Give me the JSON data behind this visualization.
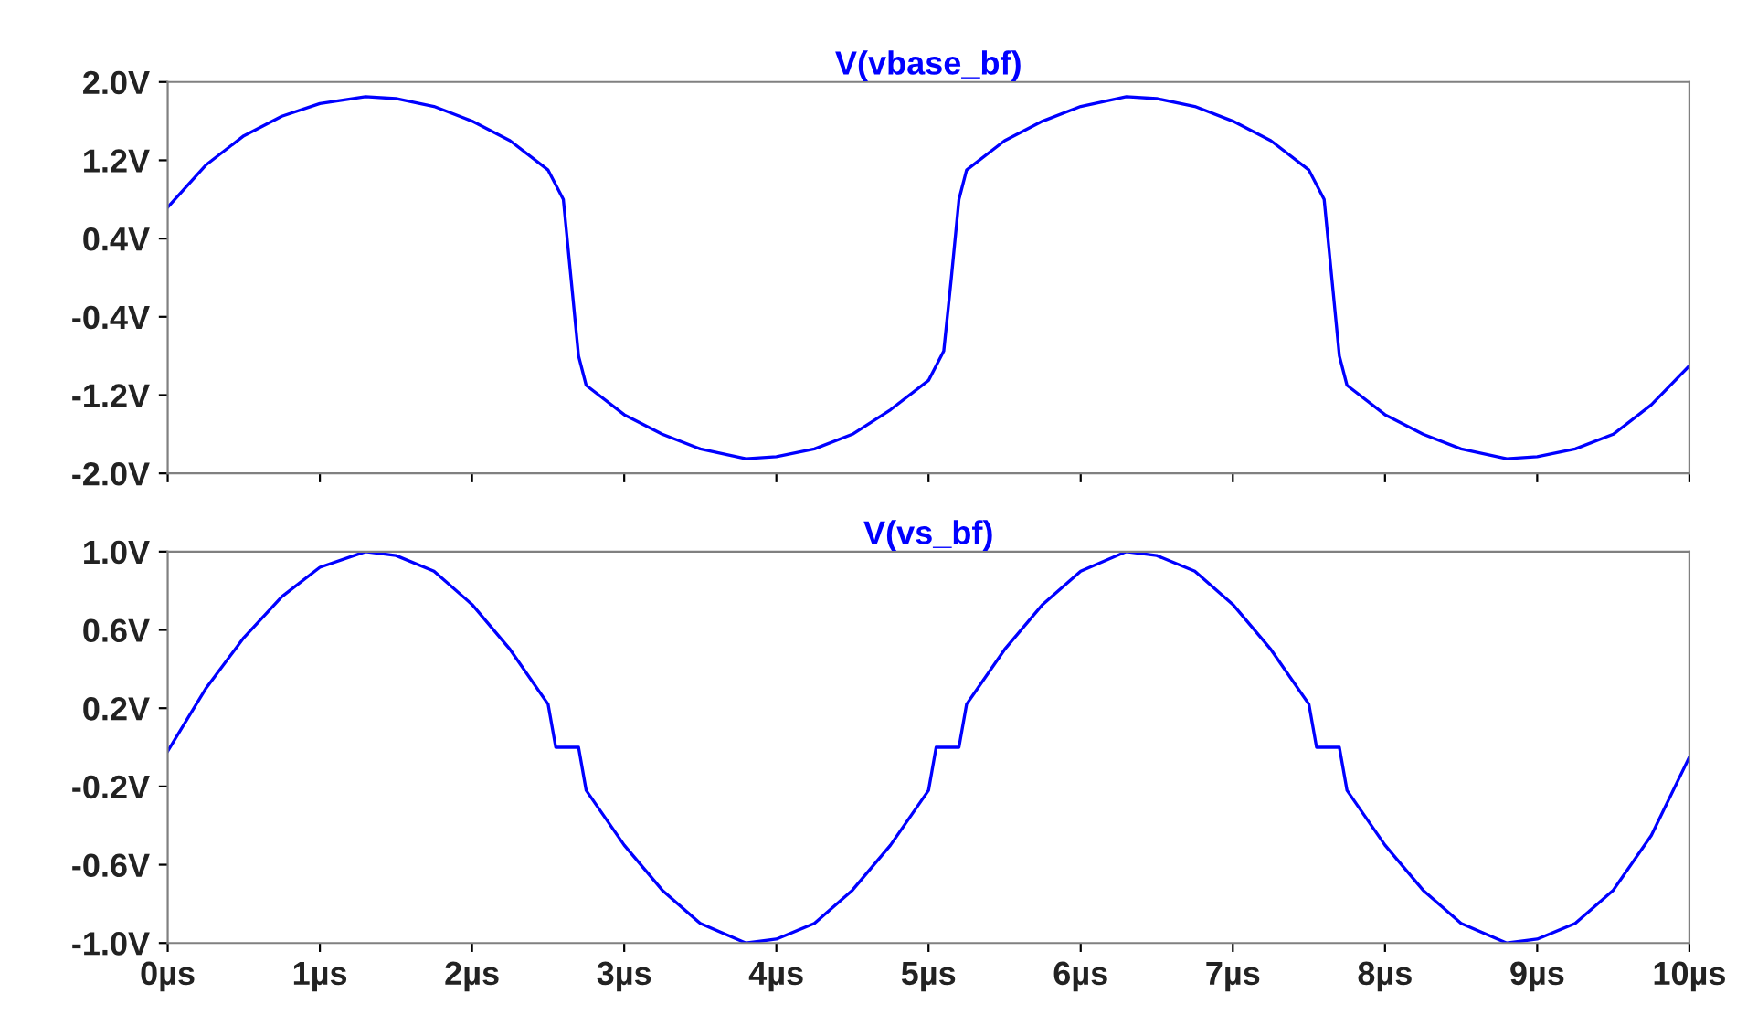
{
  "chart_data": [
    {
      "type": "line",
      "title": "V(vbase_bf)",
      "tick_labels": "y",
      "grid": false,
      "legend": false,
      "xlim": [
        0,
        10
      ],
      "xticks": [
        {
          "value": 0,
          "label": null
        },
        {
          "value": 1,
          "label": null
        },
        {
          "value": 2,
          "label": null
        },
        {
          "value": 3,
          "label": null
        },
        {
          "value": 4,
          "label": null
        },
        {
          "value": 5,
          "label": null
        },
        {
          "value": 6,
          "label": null
        },
        {
          "value": 7,
          "label": null
        },
        {
          "value": 8,
          "label": null
        },
        {
          "value": 9,
          "label": null
        },
        {
          "value": 10,
          "label": null
        }
      ],
      "ylim": [
        -2.0,
        2.0
      ],
      "yticks": [
        {
          "value": -2.0,
          "label": "-2.0V"
        },
        {
          "value": -1.2,
          "label": "-1.2V"
        },
        {
          "value": -0.4,
          "label": "-0.4V"
        },
        {
          "value": 0.4,
          "label": "0.4V"
        },
        {
          "value": 1.2,
          "label": "1.2V"
        },
        {
          "value": 2.0,
          "label": "2.0V"
        }
      ],
      "series": [
        {
          "color": "#0000ff",
          "x": [
            0,
            0.25,
            0.5,
            0.75,
            1.0,
            1.3,
            1.5,
            1.75,
            2.0,
            2.25,
            2.5,
            2.6,
            2.65,
            2.7,
            2.75,
            3.0,
            3.25,
            3.5,
            3.8,
            4.0,
            4.25,
            4.5,
            4.75,
            5.0,
            5.1,
            5.15,
            5.2,
            5.25,
            5.5,
            5.75,
            6.0,
            6.3,
            6.5,
            6.75,
            7.0,
            7.25,
            7.5,
            7.6,
            7.65,
            7.7,
            7.75,
            8.0,
            8.25,
            8.5,
            8.8,
            9.0,
            9.25,
            9.5,
            9.75,
            10.0
          ],
          "values": [
            0.72,
            1.15,
            1.45,
            1.65,
            1.78,
            1.85,
            1.83,
            1.75,
            1.6,
            1.4,
            1.1,
            0.8,
            0.0,
            -0.8,
            -1.1,
            -1.4,
            -1.6,
            -1.75,
            -1.85,
            -1.83,
            -1.75,
            -1.6,
            -1.35,
            -1.05,
            -0.75,
            0.0,
            0.8,
            1.1,
            1.4,
            1.6,
            1.75,
            1.85,
            1.83,
            1.75,
            1.6,
            1.4,
            1.1,
            0.8,
            0.0,
            -0.8,
            -1.1,
            -1.4,
            -1.6,
            -1.75,
            -1.85,
            -1.83,
            -1.75,
            -1.6,
            -1.3,
            -0.9
          ]
        }
      ]
    },
    {
      "type": "line",
      "title": "V(vs_bf)",
      "grid": false,
      "legend": false,
      "xlim": [
        0,
        10
      ],
      "xticks": [
        {
          "value": 0,
          "label": "0µs"
        },
        {
          "value": 1,
          "label": "1µs"
        },
        {
          "value": 2,
          "label": "2µs"
        },
        {
          "value": 3,
          "label": "3µs"
        },
        {
          "value": 4,
          "label": "4µs"
        },
        {
          "value": 5,
          "label": "5µs"
        },
        {
          "value": 6,
          "label": "6µs"
        },
        {
          "value": 7,
          "label": "7µs"
        },
        {
          "value": 8,
          "label": "8µs"
        },
        {
          "value": 9,
          "label": "9µs"
        },
        {
          "value": 10,
          "label": "10µs"
        }
      ],
      "ylim": [
        -1.0,
        1.0
      ],
      "yticks": [
        {
          "value": -1.0,
          "label": "-1.0V"
        },
        {
          "value": -0.6,
          "label": "-0.6V"
        },
        {
          "value": -0.2,
          "label": "-0.2V"
        },
        {
          "value": 0.2,
          "label": "0.2V"
        },
        {
          "value": 0.6,
          "label": "0.6V"
        },
        {
          "value": 1.0,
          "label": "1.0V"
        }
      ],
      "series": [
        {
          "color": "#0000ff",
          "x": [
            0,
            0.25,
            0.5,
            0.75,
            1.0,
            1.3,
            1.5,
            1.75,
            2.0,
            2.25,
            2.5,
            2.55,
            2.7,
            2.75,
            3.0,
            3.25,
            3.5,
            3.8,
            4.0,
            4.25,
            4.5,
            4.75,
            5.0,
            5.05,
            5.2,
            5.25,
            5.5,
            5.75,
            6.0,
            6.3,
            6.5,
            6.75,
            7.0,
            7.25,
            7.5,
            7.55,
            7.7,
            7.75,
            8.0,
            8.25,
            8.5,
            8.8,
            9.0,
            9.25,
            9.5,
            9.75,
            10.0
          ],
          "values": [
            -0.02,
            0.3,
            0.56,
            0.77,
            0.92,
            1.0,
            0.98,
            0.9,
            0.73,
            0.5,
            0.22,
            0.0,
            0.0,
            -0.22,
            -0.5,
            -0.73,
            -0.9,
            -1.0,
            -0.98,
            -0.9,
            -0.73,
            -0.5,
            -0.22,
            0.0,
            0.0,
            0.22,
            0.5,
            0.73,
            0.9,
            1.0,
            0.98,
            0.9,
            0.73,
            0.5,
            0.22,
            0.0,
            0.0,
            -0.22,
            -0.5,
            -0.73,
            -0.9,
            -1.0,
            -0.98,
            -0.9,
            -0.73,
            -0.45,
            -0.05
          ]
        }
      ]
    }
  ]
}
